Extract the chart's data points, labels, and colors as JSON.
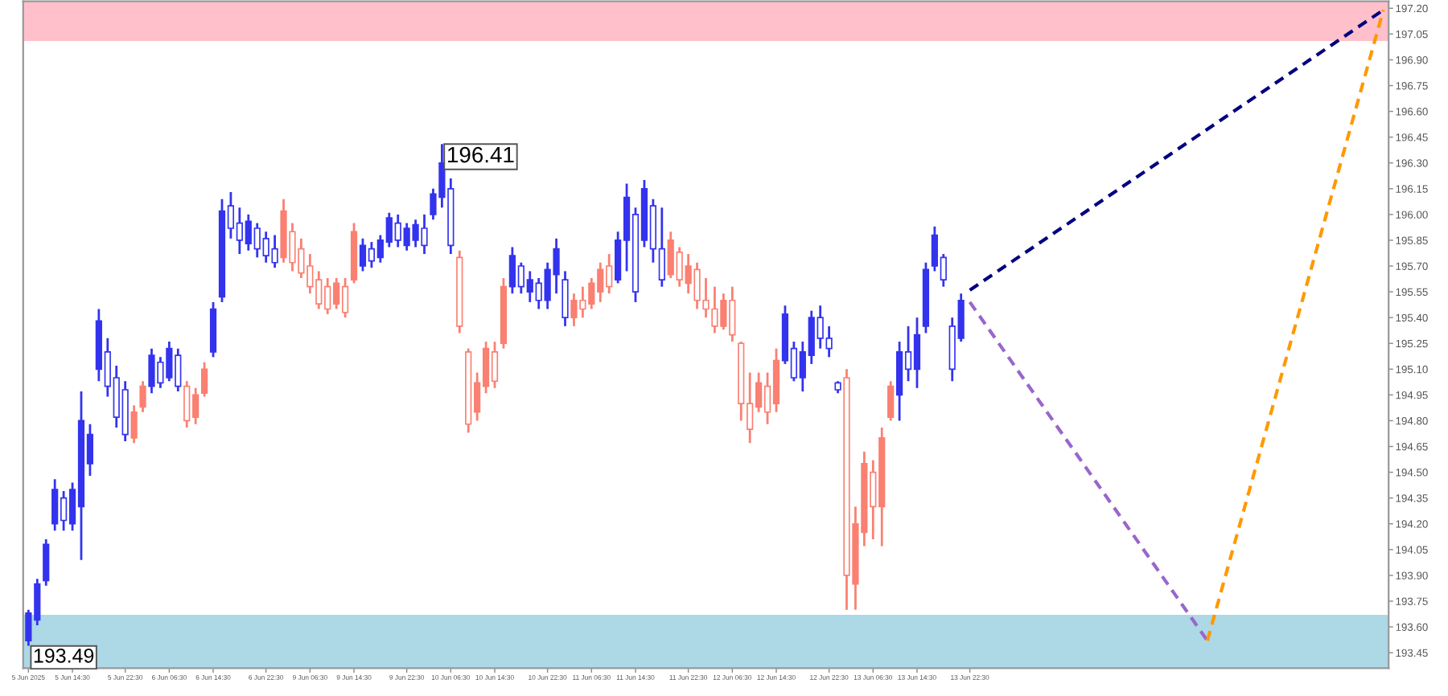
{
  "chart_data": {
    "type": "candlestick",
    "categories": [
      "5 Jun 2025",
      null,
      null,
      null,
      null,
      "5 Jun 14:30",
      null,
      null,
      null,
      null,
      null,
      "5 Jun 22:30",
      null,
      null,
      null,
      null,
      "6 Jun 06:30",
      null,
      null,
      null,
      null,
      "6 Jun 14:30",
      null,
      null,
      null,
      null,
      null,
      "6 Jun 22:30",
      null,
      null,
      null,
      null,
      "9 Jun 06:30",
      null,
      null,
      null,
      null,
      "9 Jun 14:30",
      null,
      null,
      null,
      null,
      null,
      "9 Jun 22:30",
      null,
      null,
      null,
      null,
      "10 Jun 06:30",
      null,
      null,
      null,
      null,
      "10 Jun 14:30",
      null,
      null,
      null,
      null,
      null,
      "10 Jun 22:30",
      null,
      null,
      null,
      null,
      "11 Jun 06:30",
      null,
      null,
      null,
      null,
      "11 Jun 14:30",
      null,
      null,
      null,
      null,
      null,
      "11 Jun 22:30",
      null,
      null,
      null,
      null,
      "12 Jun 06:30",
      null,
      null,
      null,
      null,
      "12 Jun 14:30",
      null,
      null,
      null,
      null,
      null,
      "12 Jun 22:30",
      null,
      null,
      null,
      null,
      "13 Jun 06:30",
      null,
      null,
      null,
      null,
      "13 Jun 14:30",
      null,
      null,
      null,
      null,
      null,
      "13 Jun 22:30",
      null,
      null,
      null,
      null,
      null,
      null,
      null,
      null,
      null,
      null,
      null,
      null,
      null,
      null,
      null,
      null,
      null,
      null,
      null,
      null,
      null,
      null,
      null,
      null,
      null,
      null,
      null,
      null,
      null,
      null,
      null,
      null,
      null,
      null,
      null,
      null,
      null,
      null,
      null,
      null,
      null,
      null,
      null,
      null,
      null,
      null,
      null
    ],
    "ylim": [
      193.36,
      197.24
    ],
    "yticks": [
      {
        "value": 193.45,
        "label": "193.45"
      },
      {
        "value": 193.6,
        "label": "193.60"
      },
      {
        "value": 193.75,
        "label": "193.75"
      },
      {
        "value": 193.9,
        "label": "193.90"
      },
      {
        "value": 194.05,
        "label": "194.05"
      },
      {
        "value": 194.2,
        "label": "194.20"
      },
      {
        "value": 194.35,
        "label": "194.35"
      },
      {
        "value": 194.5,
        "label": "194.50"
      },
      {
        "value": 194.65,
        "label": "194.65"
      },
      {
        "value": 194.8,
        "label": "194.80"
      },
      {
        "value": 194.95,
        "label": "194.95"
      },
      {
        "value": 195.1,
        "label": "195.10"
      },
      {
        "value": 195.25,
        "label": "195.25"
      },
      {
        "value": 195.4,
        "label": "195.40"
      },
      {
        "value": 195.55,
        "label": "195.55"
      },
      {
        "value": 195.7,
        "label": "195.70"
      },
      {
        "value": 195.85,
        "label": "195.85"
      },
      {
        "value": 196.0,
        "label": "196.00"
      },
      {
        "value": 196.15,
        "label": "196.15"
      },
      {
        "value": 196.3,
        "label": "196.30"
      },
      {
        "value": 196.45,
        "label": "196.45"
      },
      {
        "value": 196.6,
        "label": "196.60"
      },
      {
        "value": 196.75,
        "label": "196.75"
      },
      {
        "value": 196.9,
        "label": "196.90"
      },
      {
        "value": 197.05,
        "label": "197.05"
      },
      {
        "value": 197.2,
        "label": "197.20"
      }
    ],
    "grid": false,
    "bands": [
      {
        "axis": "y",
        "from": 197.01,
        "to": 197.24,
        "color": "#ffc0cb"
      },
      {
        "axis": "y",
        "from": 193.36,
        "to": 193.67,
        "color": "#add8e6"
      }
    ],
    "annotations": [
      "196.41",
      "193.49"
    ],
    "colors": [
      "#3333ee",
      "#3333ee",
      "#3333ee",
      "#3333ee",
      "#3333ee",
      "#3333ee",
      "#3333ee",
      "#3333ee",
      "#3333ee",
      "#3333ee",
      "#3333ee",
      "#3333ee",
      "#fa8072",
      "#fa8072",
      "#3333ee",
      "#3333ee",
      "#3333ee",
      "#3333ee",
      "#fa8072",
      "#fa8072",
      "#fa8072",
      "#3333ee",
      "#3333ee",
      "#3333ee",
      "#3333ee",
      "#3333ee",
      "#3333ee",
      "#3333ee",
      "#3333ee",
      "#fa8072",
      "#fa8072",
      "#fa8072",
      "#fa8072",
      "#fa8072",
      "#fa8072",
      "#fa8072",
      "#fa8072",
      "#fa8072",
      "#3333ee",
      "#3333ee",
      "#3333ee",
      "#3333ee",
      "#3333ee",
      "#3333ee",
      "#3333ee",
      "#3333ee",
      "#3333ee",
      "#3333ee",
      "#3333ee",
      "#fa8072",
      "#fa8072",
      "#fa8072",
      "#fa8072",
      "#fa8072",
      "#fa8072",
      "#3333ee",
      "#3333ee",
      "#3333ee",
      "#3333ee",
      "#3333ee",
      "#3333ee",
      "#3333ee",
      "#fa8072",
      "#fa8072",
      "#fa8072",
      "#fa8072",
      "#fa8072",
      "#3333ee",
      "#3333ee",
      "#3333ee",
      "#3333ee",
      "#3333ee",
      "#3333ee",
      "#fa8072",
      "#fa8072",
      "#fa8072",
      "#fa8072",
      "#fa8072",
      "#fa8072",
      "#fa8072",
      "#fa8072",
      "#fa8072",
      "#fa8072",
      "#fa8072",
      "#fa8072",
      "#fa8072",
      "#3333ee",
      "#3333ee",
      "#3333ee",
      "#3333ee",
      "#3333ee",
      "#3333ee",
      "#3333ee",
      "#fa8072",
      "#fa8072",
      "#fa8072",
      "#fa8072",
      "#fa8072",
      "#fa8072",
      "#3333ee",
      "#3333ee",
      "#3333ee",
      "#3333ee",
      "#3333ee",
      "#3333ee",
      "#3333ee",
      "#3333ee",
      null,
      null,
      null,
      null,
      null,
      null,
      null,
      null,
      null,
      null,
      null,
      null,
      null,
      null,
      null,
      null,
      null,
      null,
      null,
      null,
      null,
      null,
      null,
      null,
      null,
      null,
      null,
      null,
      null,
      null,
      null,
      null,
      null,
      null,
      null,
      null,
      null,
      null,
      null,
      null,
      null,
      null,
      null,
      null,
      null,
      null,
      null,
      null
    ],
    "ohlc": [
      [
        193.52,
        193.7,
        193.49,
        193.68
      ],
      [
        193.64,
        193.88,
        193.61,
        193.85
      ],
      [
        193.87,
        194.11,
        193.84,
        194.08
      ],
      [
        194.2,
        194.46,
        194.16,
        194.4
      ],
      [
        194.35,
        194.39,
        194.16,
        194.22
      ],
      [
        194.2,
        194.44,
        194.16,
        194.4
      ],
      [
        194.3,
        194.97,
        193.99,
        194.8
      ],
      [
        194.55,
        194.78,
        194.48,
        194.72
      ],
      [
        195.1,
        195.45,
        195.03,
        195.38
      ],
      [
        195.2,
        195.28,
        194.94,
        195.0
      ],
      [
        195.05,
        195.12,
        194.76,
        194.82
      ],
      [
        194.98,
        195.03,
        194.68,
        194.72
      ],
      [
        194.7,
        194.89,
        194.67,
        194.85
      ],
      [
        194.88,
        195.03,
        194.85,
        195.0
      ],
      [
        195.0,
        195.22,
        194.96,
        195.18
      ],
      [
        195.14,
        195.17,
        194.99,
        195.02
      ],
      [
        195.05,
        195.26,
        195.03,
        195.22
      ],
      [
        195.18,
        195.22,
        194.97,
        195.0
      ],
      [
        195.0,
        195.03,
        194.76,
        194.8
      ],
      [
        194.82,
        194.99,
        194.78,
        194.95
      ],
      [
        194.96,
        195.14,
        194.94,
        195.1
      ],
      [
        195.2,
        195.49,
        195.17,
        195.45
      ],
      [
        195.52,
        196.09,
        195.49,
        196.02
      ],
      [
        196.05,
        196.13,
        195.86,
        195.92
      ],
      [
        195.95,
        196.04,
        195.77,
        195.85
      ],
      [
        195.83,
        196.0,
        195.79,
        195.96
      ],
      [
        195.92,
        195.95,
        195.75,
        195.8
      ],
      [
        195.86,
        195.9,
        195.72,
        195.76
      ],
      [
        195.8,
        195.88,
        195.69,
        195.72
      ],
      [
        195.75,
        196.09,
        195.72,
        196.02
      ],
      [
        195.9,
        195.95,
        195.67,
        195.72
      ],
      [
        195.8,
        195.86,
        195.63,
        195.66
      ],
      [
        195.7,
        195.77,
        195.54,
        195.58
      ],
      [
        195.62,
        195.67,
        195.45,
        195.48
      ],
      [
        195.58,
        195.63,
        195.42,
        195.45
      ],
      [
        195.48,
        195.63,
        195.45,
        195.6
      ],
      [
        195.58,
        195.63,
        195.4,
        195.43
      ],
      [
        195.62,
        195.95,
        195.6,
        195.9
      ],
      [
        195.7,
        195.86,
        195.67,
        195.82
      ],
      [
        195.8,
        195.84,
        195.69,
        195.73
      ],
      [
        195.75,
        195.88,
        195.72,
        195.85
      ],
      [
        195.84,
        196.01,
        195.81,
        195.98
      ],
      [
        195.95,
        196.0,
        195.81,
        195.85
      ],
      [
        195.82,
        195.95,
        195.79,
        195.92
      ],
      [
        195.85,
        195.97,
        195.81,
        195.94
      ],
      [
        195.92,
        196.0,
        195.77,
        195.82
      ],
      [
        196.0,
        196.15,
        195.97,
        196.12
      ],
      [
        196.1,
        196.41,
        196.04,
        196.3
      ],
      [
        196.15,
        196.21,
        195.77,
        195.82
      ],
      [
        195.75,
        195.79,
        195.31,
        195.35
      ],
      [
        195.2,
        195.22,
        194.73,
        194.78
      ],
      [
        194.85,
        195.08,
        194.8,
        195.02
      ],
      [
        195.0,
        195.26,
        194.96,
        195.22
      ],
      [
        195.2,
        195.26,
        194.99,
        195.03
      ],
      [
        195.25,
        195.63,
        195.22,
        195.58
      ],
      [
        195.58,
        195.81,
        195.54,
        195.76
      ],
      [
        195.7,
        195.72,
        195.54,
        195.58
      ],
      [
        195.55,
        195.67,
        195.49,
        195.62
      ],
      [
        195.6,
        195.63,
        195.45,
        195.5
      ],
      [
        195.5,
        195.72,
        195.45,
        195.68
      ],
      [
        195.65,
        195.86,
        195.54,
        195.8
      ],
      [
        195.62,
        195.67,
        195.35,
        195.4
      ],
      [
        195.4,
        195.54,
        195.35,
        195.5
      ],
      [
        195.5,
        195.58,
        195.4,
        195.45
      ],
      [
        195.48,
        195.63,
        195.45,
        195.6
      ],
      [
        195.55,
        195.72,
        195.49,
        195.68
      ],
      [
        195.7,
        195.77,
        195.54,
        195.58
      ],
      [
        195.62,
        195.9,
        195.6,
        195.85
      ],
      [
        195.85,
        196.18,
        195.67,
        196.1
      ],
      [
        196.0,
        196.04,
        195.49,
        195.55
      ],
      [
        195.85,
        196.2,
        195.81,
        196.15
      ],
      [
        196.05,
        196.09,
        195.72,
        195.8
      ],
      [
        195.8,
        196.04,
        195.58,
        195.62
      ],
      [
        195.65,
        195.9,
        195.63,
        195.85
      ],
      [
        195.78,
        195.81,
        195.58,
        195.62
      ],
      [
        195.6,
        195.77,
        195.54,
        195.7
      ],
      [
        195.68,
        195.72,
        195.45,
        195.5
      ],
      [
        195.5,
        195.63,
        195.4,
        195.45
      ],
      [
        195.45,
        195.58,
        195.31,
        195.35
      ],
      [
        195.35,
        195.54,
        195.33,
        195.5
      ],
      [
        195.5,
        195.58,
        195.26,
        195.3
      ],
      [
        195.25,
        195.26,
        194.8,
        194.9
      ],
      [
        194.9,
        195.08,
        194.67,
        194.75
      ],
      [
        194.88,
        195.08,
        194.85,
        195.02
      ],
      [
        195.0,
        195.08,
        194.78,
        194.85
      ],
      [
        194.9,
        195.22,
        194.85,
        195.15
      ],
      [
        195.15,
        195.47,
        195.13,
        195.42
      ],
      [
        195.22,
        195.26,
        195.03,
        195.05
      ],
      [
        195.05,
        195.26,
        194.97,
        195.2
      ],
      [
        195.18,
        195.44,
        195.13,
        195.4
      ],
      [
        195.4,
        195.47,
        195.22,
        195.28
      ],
      [
        195.28,
        195.35,
        195.17,
        195.22
      ],
      [
        195.02,
        195.03,
        194.96,
        194.98
      ],
      [
        195.05,
        195.1,
        193.7,
        193.9
      ],
      [
        193.85,
        194.3,
        193.7,
        194.2
      ],
      [
        194.15,
        194.62,
        194.07,
        194.55
      ],
      [
        194.5,
        194.57,
        194.11,
        194.3
      ],
      [
        194.3,
        194.76,
        194.07,
        194.7
      ],
      [
        194.82,
        195.03,
        194.8,
        195.0
      ],
      [
        194.95,
        195.26,
        194.8,
        195.2
      ],
      [
        195.2,
        195.35,
        195.03,
        195.1
      ],
      [
        195.1,
        195.4,
        194.99,
        195.3
      ],
      [
        195.35,
        195.72,
        195.31,
        195.68
      ],
      [
        195.7,
        195.93,
        195.67,
        195.88
      ],
      [
        195.75,
        195.77,
        195.58,
        195.62
      ],
      [
        195.35,
        195.4,
        195.03,
        195.1
      ],
      [
        195.28,
        195.54,
        195.26,
        195.5
      ],
      null,
      null,
      null,
      null,
      null,
      null,
      null,
      null,
      null,
      null,
      null,
      null,
      null,
      null,
      null,
      null,
      null,
      null,
      null,
      null,
      null,
      null,
      null,
      null,
      null,
      null,
      null,
      null,
      null,
      null,
      null,
      null,
      null,
      null,
      null,
      null,
      null,
      null,
      null,
      null,
      null,
      null,
      null,
      null,
      null,
      null,
      null,
      null
    ],
    "series": [
      {
        "type": "line",
        "color": "#9966cc",
        "line_style": "dashed",
        "values": [
          null,
          null,
          null,
          null,
          null,
          null,
          null,
          null,
          null,
          null,
          null,
          null,
          null,
          null,
          null,
          null,
          null,
          null,
          null,
          null,
          null,
          null,
          null,
          null,
          null,
          null,
          null,
          null,
          null,
          null,
          null,
          null,
          null,
          null,
          null,
          null,
          null,
          null,
          null,
          null,
          null,
          null,
          null,
          null,
          null,
          null,
          null,
          null,
          null,
          null,
          null,
          null,
          null,
          null,
          null,
          null,
          null,
          null,
          null,
          null,
          null,
          null,
          null,
          null,
          null,
          null,
          null,
          null,
          null,
          null,
          null,
          null,
          null,
          null,
          null,
          null,
          null,
          null,
          null,
          null,
          null,
          null,
          null,
          null,
          null,
          null,
          null,
          null,
          null,
          null,
          null,
          null,
          null,
          null,
          null,
          null,
          null,
          null,
          null,
          null,
          null,
          null,
          null,
          null,
          null,
          null,
          null,
          195.49,
          null,
          null,
          null,
          null,
          null,
          null,
          null,
          null,
          null,
          null,
          null,
          null,
          null,
          null,
          null,
          null,
          null,
          null,
          null,
          null,
          null,
          null,
          null,
          null,
          null,
          null,
          193.52,
          null,
          null,
          null,
          null,
          null,
          null,
          null,
          null,
          null,
          null,
          null,
          null,
          null,
          null,
          null,
          null,
          null,
          null,
          null,
          null
        ]
      },
      {
        "type": "line",
        "color": "#ff9900",
        "line_style": "dashed",
        "values": [
          null,
          null,
          null,
          null,
          null,
          null,
          null,
          null,
          null,
          null,
          null,
          null,
          null,
          null,
          null,
          null,
          null,
          null,
          null,
          null,
          null,
          null,
          null,
          null,
          null,
          null,
          null,
          null,
          null,
          null,
          null,
          null,
          null,
          null,
          null,
          null,
          null,
          null,
          null,
          null,
          null,
          null,
          null,
          null,
          null,
          null,
          null,
          null,
          null,
          null,
          null,
          null,
          null,
          null,
          null,
          null,
          null,
          null,
          null,
          null,
          null,
          null,
          null,
          null,
          null,
          null,
          null,
          null,
          null,
          null,
          null,
          null,
          null,
          null,
          null,
          null,
          null,
          null,
          null,
          null,
          null,
          null,
          null,
          null,
          null,
          null,
          null,
          null,
          null,
          null,
          null,
          null,
          null,
          null,
          null,
          null,
          null,
          null,
          null,
          null,
          null,
          null,
          null,
          null,
          null,
          null,
          null,
          null,
          null,
          null,
          null,
          null,
          null,
          null,
          null,
          null,
          null,
          null,
          null,
          null,
          null,
          null,
          null,
          null,
          null,
          null,
          null,
          null,
          null,
          null,
          null,
          null,
          null,
          null,
          193.52,
          null,
          null,
          null,
          null,
          null,
          null,
          null,
          null,
          null,
          null,
          null,
          null,
          null,
          null,
          null,
          null,
          null,
          null,
          null,
          197.19
        ]
      },
      {
        "type": "line",
        "color": "#000080",
        "line_style": "dashed",
        "values": [
          null,
          null,
          null,
          null,
          null,
          null,
          null,
          null,
          null,
          null,
          null,
          null,
          null,
          null,
          null,
          null,
          null,
          null,
          null,
          null,
          null,
          null,
          null,
          null,
          null,
          null,
          null,
          null,
          null,
          null,
          null,
          null,
          null,
          null,
          null,
          null,
          null,
          null,
          null,
          null,
          null,
          null,
          null,
          null,
          null,
          null,
          null,
          null,
          null,
          null,
          null,
          null,
          null,
          null,
          null,
          null,
          null,
          null,
          null,
          null,
          null,
          null,
          null,
          null,
          null,
          null,
          null,
          null,
          null,
          null,
          null,
          null,
          null,
          null,
          null,
          null,
          null,
          null,
          null,
          null,
          null,
          null,
          null,
          null,
          null,
          null,
          null,
          null,
          null,
          null,
          null,
          null,
          null,
          null,
          null,
          null,
          null,
          null,
          null,
          null,
          null,
          null,
          null,
          null,
          null,
          null,
          null,
          195.56,
          null,
          null,
          null,
          null,
          null,
          null,
          null,
          null,
          null,
          null,
          null,
          null,
          null,
          null,
          null,
          null,
          null,
          null,
          null,
          null,
          null,
          null,
          null,
          null,
          null,
          null,
          null,
          null,
          null,
          null,
          null,
          null,
          null,
          null,
          null,
          null,
          null,
          null,
          null,
          null,
          null,
          null,
          null,
          null,
          null,
          null,
          197.19
        ]
      }
    ]
  }
}
